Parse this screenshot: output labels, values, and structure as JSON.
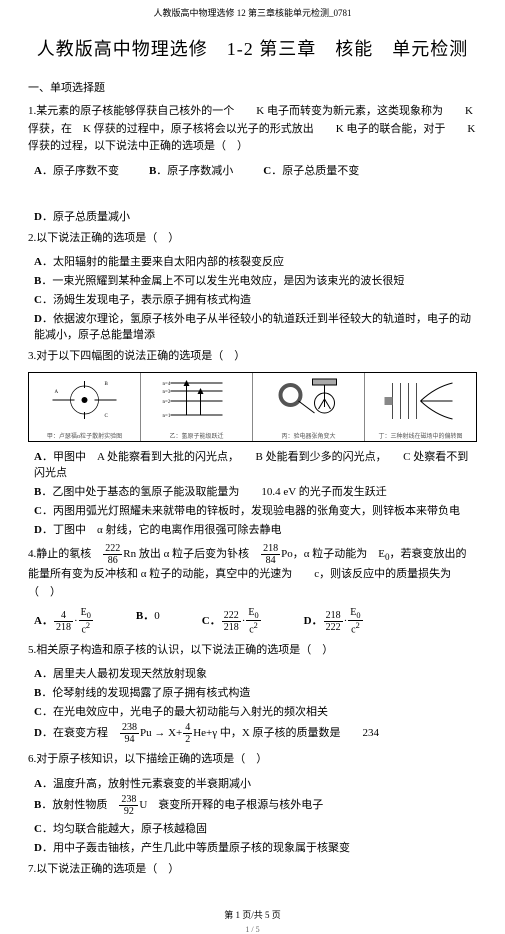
{
  "top_header": "人教版高中物理选修 12 第三章核能单元检测_0781",
  "main_title": "人教版高中物理选修　1-2 第三章　核能　单元检测",
  "section_head": "一、单项选择题",
  "questions": [
    {
      "stem": "1.某元素的原子核能够俘获自己核外的一个　　K 电子而转变为新元素，这类现象称为　　K 俘获，在　K 俘获的过程中，原子核将会以光子的形式放出　　K 电子的联合能，对于　　K 俘获的过程，以下说法中正确的选项是（　）",
      "opts_row": [
        "A．原子序数不变",
        "B．原子序数减小",
        "C．原子总质量不变",
        "D．原子总质量减小"
      ]
    },
    {
      "stem": "2.以下说法正确的选项是（　）",
      "opts_col": [
        "A．太阳辐射的能量主要来自太阳内部的核裂变反应",
        "B．一束光照耀到某种金属上不可以发生光电效应，是因为该束光的波长很短",
        "C．汤姆生发现电子，表示原子拥有核式构造",
        "D．依据波尔理论，氢原子核外电子从半径较小的轨道跃迁到半径较大的轨道时，电子的动能减小，原子总能量增添"
      ]
    },
    {
      "stem": "3.对于以下四幅图的说法正确的选项是（　）",
      "diagram": true,
      "panel_captions": [
        "甲：卢瑟福α粒子散射实验图",
        "乙：氢原子能级跃迁",
        "丙：验电器张角变大",
        "丁：三种射线在磁场中的偏转图"
      ],
      "opts_col": [
        "A．甲图中　A 处能察看到大批的闪光点，　　B 处能看到少多的闪光点，　　C 处察看不到闪光点",
        "B．乙图中处于基态的氢原子能汲取能量为　　10.4 eV 的光子而发生跃迁",
        "C．丙图用弧光灯照耀未来就带电的锌板时，发现验电器的张角变大，则锌板本来带负电",
        "D．丁图中　α 射线，它的电离作用很强可除去静电"
      ]
    },
    {
      "stem_html": "4.静止的氡核　<span class='frac'><span class='num'>222</span><span class='den'>86</span></span>Rn 放出 α 粒子后变为钋核　<span class='frac'><span class='num'>218</span><span class='den'>84</span></span>Po，α 粒子动能为　E<sub>0</sub>，若衰变放出的能量所有变为反冲核和 α 粒子的动能，真空中的光速为　　c，则该反应中的质量损失为（　）",
      "opts_frac": [
        {
          "label": "A．",
          "html": "<span class='frac'><span class='num'>4</span><span class='den'>218</span></span>·<span class='frac'><span class='num'>E<sub>0</sub></span><span class='den'>c<sup>2</sup></span></span>"
        },
        {
          "label": "B．",
          "html": "0"
        },
        {
          "label": "C．",
          "html": "<span class='frac'><span class='num'>222</span><span class='den'>218</span></span>·<span class='frac'><span class='num'>E<sub>0</sub></span><span class='den'>c<sup>2</sup></span></span>"
        },
        {
          "label": "D．",
          "html": "<span class='frac'><span class='num'>218</span><span class='den'>222</span></span>·<span class='frac'><span class='num'>E<sub>0</sub></span><span class='den'>c<sup>2</sup></span></span>"
        }
      ]
    },
    {
      "stem": "5.相关原子构造和原子核的认识，以下说法正确的选项是（　）",
      "opts_col": [
        "A．居里夫人最初发现天然放射现象",
        "B．伦琴射线的发现揭露了原子拥有核式构造",
        "C．在光电效应中，光电子的最大初动能与入射光的频次相关",
        "D．在衰变方程　<span class='frac'><span class='num'>238</span><span class='den'>94</span></span>Pu → X+<span class='frac'><span class='num'>4</span><span class='den'>2</span></span>He+γ 中，X 原子核的质量数是　　234"
      ]
    },
    {
      "stem": "6.对于原子核知识，以下描绘正确的选项是（　）",
      "opts_col": [
        "A．温度升高，放射性元素衰变的半衰期减小",
        "B．放射性物质　<span class='frac'><span class='num'>238</span><span class='den'>92</span></span>U　衰变所开释的电子根源与核外电子",
        "C．均匀联合能越大，原子核越稳固",
        "D．用中子轰击铀核，产生几此中等质量原子核的现象属于核聚变"
      ]
    },
    {
      "stem": "7.以下说法正确的选项是（　）"
    }
  ],
  "footer": "第 1 页/共 5 页",
  "footer2": "1 / 5",
  "style": {
    "body_font_size": 11,
    "title_font_size": 18,
    "header_font_size": 9,
    "caption_font_size": 6,
    "frac_font_size": 10,
    "text_color": "#000",
    "bg_color": "#fff",
    "border_color": "#000",
    "panel_sep_color": "#888",
    "caption_color": "#555"
  }
}
